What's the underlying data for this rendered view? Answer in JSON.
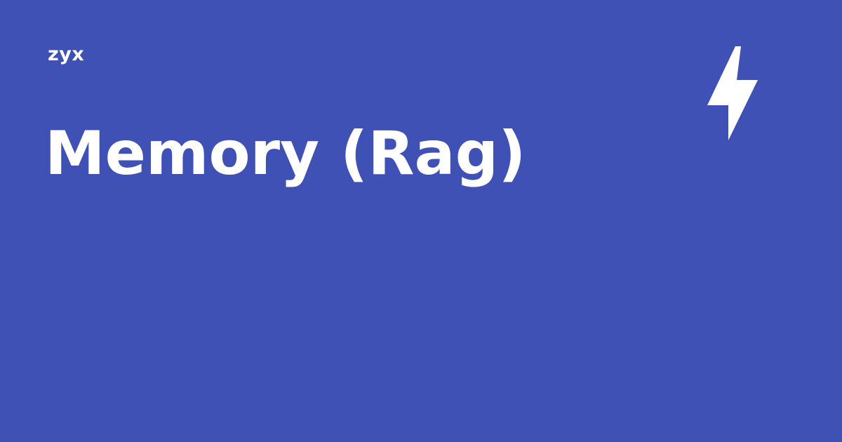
{
  "brand": {
    "site_name": "zyx"
  },
  "main": {
    "title": "Memory (Rag)"
  },
  "decoration": {
    "icon": "lightning-bolt-icon",
    "icon_color": "#ffffff"
  },
  "theme": {
    "background": "#3f51b5",
    "text": "#ffffff"
  }
}
